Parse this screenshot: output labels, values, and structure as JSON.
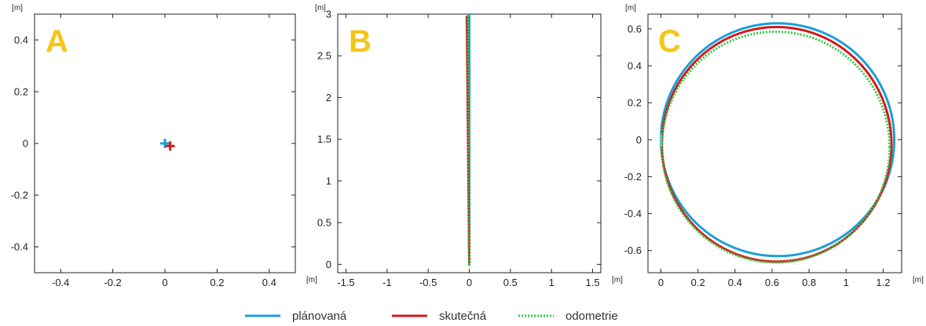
{
  "colors": {
    "planned": "#1a9fd8",
    "actual": "#d7191c",
    "odometry": "#2ecc40",
    "panel_letter": "#f5c518"
  },
  "legend": [
    {
      "label": "plánovaná",
      "color": "#1a9fd8",
      "style": "solid"
    },
    {
      "label": "skutečná",
      "color": "#d7191c",
      "style": "solid"
    },
    {
      "label": "odometrie",
      "color": "#2ecc40",
      "style": "dotted"
    }
  ],
  "chart_data": [
    {
      "panel": "A",
      "type": "scatter",
      "xlabel": "[m]",
      "ylabel": "[m]",
      "xlim": [
        -0.5,
        0.5
      ],
      "ylim": [
        -0.5,
        0.5
      ],
      "xticks": [
        -0.4,
        -0.2,
        0,
        0.2,
        0.4
      ],
      "xtick_labels": [
        "-0.4",
        "-0.2",
        "0",
        "0.2",
        "0.4"
      ],
      "yticks": [
        -0.4,
        -0.2,
        0,
        0.2,
        0.4
      ],
      "ytick_labels": [
        "-0.4",
        "-0.2",
        "0",
        "0.2",
        "0.4"
      ],
      "grid": false,
      "series": [
        {
          "name": "plánovaná",
          "marker": "plus",
          "x": [
            0.0
          ],
          "y": [
            0.0
          ]
        },
        {
          "name": "skutečná",
          "marker": "plus",
          "x": [
            0.02
          ],
          "y": [
            -0.01
          ]
        }
      ]
    },
    {
      "panel": "B",
      "type": "line",
      "xlabel": "[m]",
      "ylabel": "[m]",
      "xlim": [
        -1.6,
        1.6
      ],
      "ylim": [
        -0.1,
        3.0
      ],
      "xticks": [
        -1.5,
        -1,
        -0.5,
        0,
        0.5,
        1,
        1.5
      ],
      "xtick_labels": [
        "-1.5",
        "-1",
        "-0.5",
        "0",
        "0.5",
        "1",
        "1.5"
      ],
      "yticks": [
        0,
        0.5,
        1,
        1.5,
        2,
        2.5,
        3
      ],
      "ytick_labels": [
        "0",
        "0.5",
        "1",
        "1.5",
        "2",
        "2.5",
        "3"
      ],
      "grid": false,
      "series": [
        {
          "name": "plánovaná",
          "x": [
            0.0,
            0.0
          ],
          "y": [
            0.0,
            3.0
          ]
        },
        {
          "name": "skutečná",
          "x": [
            0.0,
            -0.03
          ],
          "y": [
            0.0,
            2.98
          ]
        },
        {
          "name": "odometrie",
          "x": [
            0.0,
            -0.02
          ],
          "y": [
            0.0,
            2.99
          ]
        }
      ]
    },
    {
      "panel": "C",
      "type": "line",
      "xlabel": "[m]",
      "ylabel": "[m]",
      "xlim": [
        -0.07,
        1.3
      ],
      "ylim": [
        -0.72,
        0.68
      ],
      "xticks": [
        0,
        0.2,
        0.4,
        0.6,
        0.8,
        1,
        1.2
      ],
      "xtick_labels": [
        "0",
        "0.2",
        "0.4",
        "0.6",
        "0.8",
        "1",
        "1.2"
      ],
      "yticks": [
        -0.6,
        -0.4,
        -0.2,
        0,
        0.2,
        0.4,
        0.6
      ],
      "ytick_labels": [
        "-0.6",
        "-0.4",
        "-0.2",
        "0",
        "0.2",
        "0.4",
        "0.6"
      ],
      "grid": false,
      "series": [
        {
          "name": "plánovaná",
          "shape": "ellipse",
          "cx": 0.63,
          "cy": 0.0,
          "rx": 0.63,
          "ry": 0.63
        },
        {
          "name": "skutečná",
          "shape": "ellipse",
          "cx": 0.625,
          "cy": -0.025,
          "rx": 0.62,
          "ry": 0.635
        },
        {
          "name": "odometrie",
          "shape": "ellipse",
          "cx": 0.62,
          "cy": -0.04,
          "rx": 0.615,
          "ry": 0.625
        }
      ]
    }
  ]
}
